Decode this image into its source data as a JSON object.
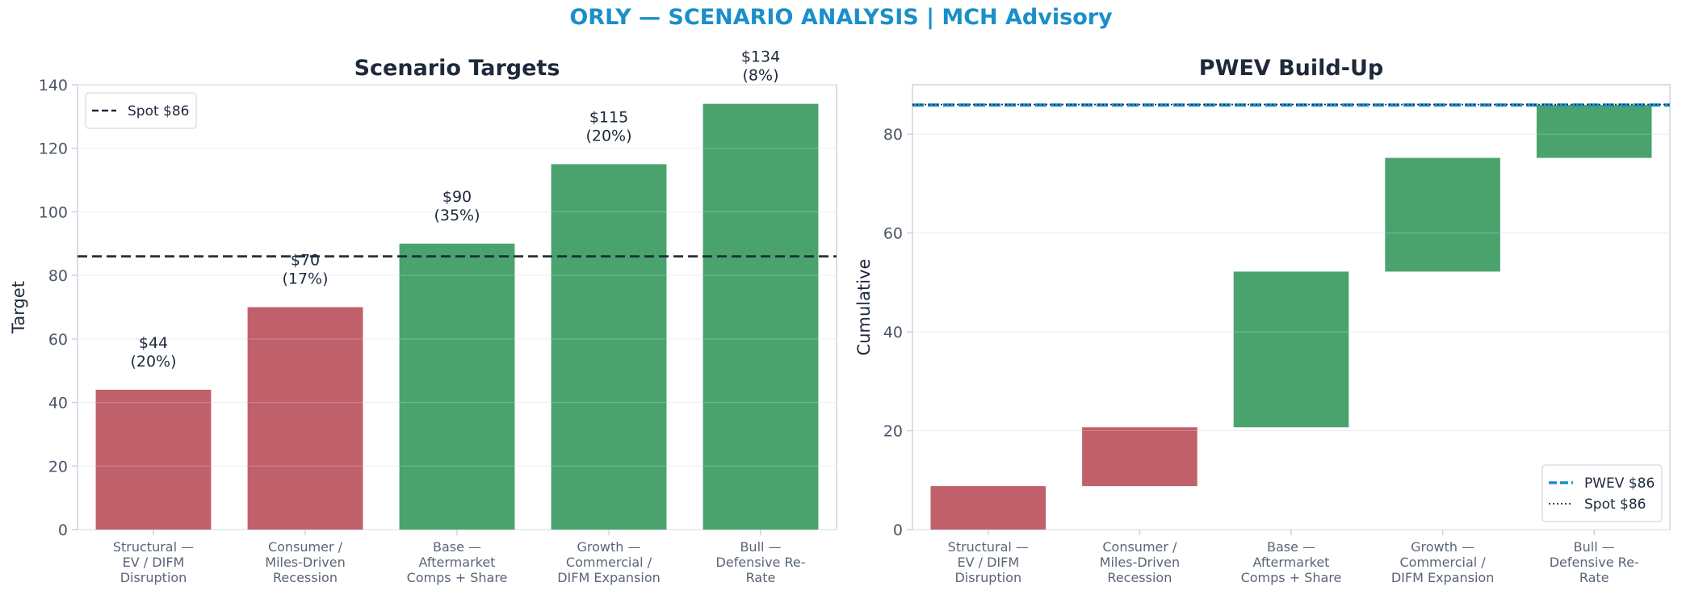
{
  "suptitle": "ORLY — SCENARIO ANALYSIS | MCH Advisory",
  "colors": {
    "accent": "#1a8fc9",
    "bear": "#c0606b",
    "bull": "#4aa36d",
    "dark": "#1e293b",
    "axis": "#cbd5e0"
  },
  "chart_data": [
    {
      "type": "bar",
      "title": "Scenario Targets",
      "xlabel": "",
      "ylabel": "Target",
      "ylim": [
        0,
        140
      ],
      "yticks": [
        0,
        20,
        40,
        60,
        80,
        100,
        120,
        140
      ],
      "categories": [
        [
          "Structural —",
          "EV / DIFM",
          "Disruption"
        ],
        [
          "Consumer /",
          "Miles-Driven",
          "Recession"
        ],
        [
          "Base —",
          "Aftermarket",
          "Comps + Share"
        ],
        [
          "Growth —",
          "Commercial /",
          "DIFM Expansion"
        ],
        [
          "Bull —",
          "Defensive Re-",
          "Rate"
        ]
      ],
      "values": [
        44,
        70,
        90,
        115,
        134
      ],
      "bar_colors": [
        "bear",
        "bear",
        "bull",
        "bull",
        "bull"
      ],
      "labels": [
        [
          "$44",
          "(20%)"
        ],
        [
          "$70",
          "(17%)"
        ],
        [
          "$90",
          "(35%)"
        ],
        [
          "$115",
          "(20%)"
        ],
        [
          "$134",
          "(8%)"
        ]
      ],
      "reference_line": {
        "value": 86,
        "style": "dashed",
        "color": "#1e293b",
        "name": "Spot $86"
      },
      "legend": {
        "placement": "top-left"
      },
      "grid": true
    },
    {
      "type": "waterfall",
      "title": "PWEV Build-Up",
      "xlabel": "",
      "ylabel": "Cumulative",
      "ylim": [
        0,
        90
      ],
      "yticks": [
        0,
        20,
        40,
        60,
        80
      ],
      "categories": [
        [
          "Structural —",
          "EV / DIFM",
          "Disruption"
        ],
        [
          "Consumer /",
          "Miles-Driven",
          "Recession"
        ],
        [
          "Base —",
          "Aftermarket",
          "Comps + Share"
        ],
        [
          "Growth —",
          "Commercial /",
          "DIFM Expansion"
        ],
        [
          "Bull —",
          "Defensive Re-",
          "Rate"
        ]
      ],
      "segments": [
        {
          "start": 0,
          "end": 8.8
        },
        {
          "start": 8.8,
          "end": 20.7
        },
        {
          "start": 20.7,
          "end": 52.2
        },
        {
          "start": 52.2,
          "end": 75.2
        },
        {
          "start": 75.2,
          "end": 85.9
        }
      ],
      "bar_colors": [
        "bear",
        "bear",
        "bull",
        "bull",
        "bull"
      ],
      "reference_lines": [
        {
          "value": 85.9,
          "style": "dashed",
          "color": "#1a8fc9",
          "name": "PWEV $86"
        },
        {
          "value": 86,
          "style": "dotted",
          "color": "#1e293b",
          "name": "Spot $86"
        }
      ],
      "legend": {
        "placement": "bottom-right"
      },
      "grid": true
    }
  ]
}
